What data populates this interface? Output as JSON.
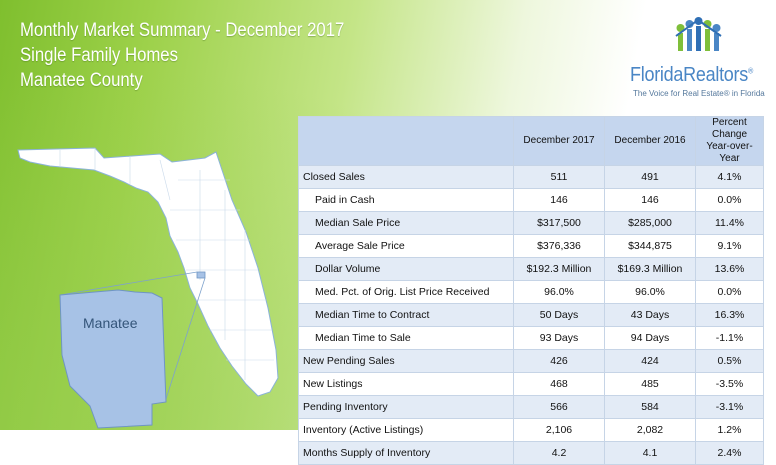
{
  "header": {
    "line1": "Monthly Market Summary - December 2017",
    "line2": "Single Family Homes",
    "line3": "Manatee County"
  },
  "logo": {
    "name": "FloridaRealtors",
    "registered": "®",
    "tagline": "The Voice for Real Estate® in Florida"
  },
  "map": {
    "county_label": "Manatee",
    "highlight_color": "#a7c2e6",
    "state_color": "#ffffff"
  },
  "table": {
    "columns": [
      "December 2017",
      "December 2016",
      "Percent Change Year-over-Year"
    ],
    "rows": [
      {
        "label": "Closed Sales",
        "sub": false,
        "c1": "511",
        "c2": "491",
        "c3": "4.1%"
      },
      {
        "label": "Paid in Cash",
        "sub": true,
        "c1": "146",
        "c2": "146",
        "c3": "0.0%"
      },
      {
        "label": "Median Sale Price",
        "sub": true,
        "c1": "$317,500",
        "c2": "$285,000",
        "c3": "11.4%"
      },
      {
        "label": "Average Sale Price",
        "sub": true,
        "c1": "$376,336",
        "c2": "$344,875",
        "c3": "9.1%"
      },
      {
        "label": "Dollar Volume",
        "sub": true,
        "c1": "$192.3 Million",
        "c2": "$169.3 Million",
        "c3": "13.6%"
      },
      {
        "label": "Med. Pct. of Orig. List Price Received",
        "sub": true,
        "c1": "96.0%",
        "c2": "96.0%",
        "c3": "0.0%"
      },
      {
        "label": "Median Time to Contract",
        "sub": true,
        "c1": "50 Days",
        "c2": "43 Days",
        "c3": "16.3%"
      },
      {
        "label": "Median Time to Sale",
        "sub": true,
        "c1": "93 Days",
        "c2": "94 Days",
        "c3": "-1.1%"
      },
      {
        "label": "New Pending Sales",
        "sub": false,
        "c1": "426",
        "c2": "424",
        "c3": "0.5%"
      },
      {
        "label": "New Listings",
        "sub": false,
        "c1": "468",
        "c2": "485",
        "c3": "-3.5%"
      },
      {
        "label": "Pending Inventory",
        "sub": false,
        "c1": "566",
        "c2": "584",
        "c3": "-3.1%"
      },
      {
        "label": "Inventory (Active Listings)",
        "sub": false,
        "c1": "2,106",
        "c2": "2,082",
        "c3": "1.2%"
      },
      {
        "label": "Months Supply of Inventory",
        "sub": false,
        "c1": "4.2",
        "c2": "4.1",
        "c3": "2.4%"
      }
    ]
  }
}
